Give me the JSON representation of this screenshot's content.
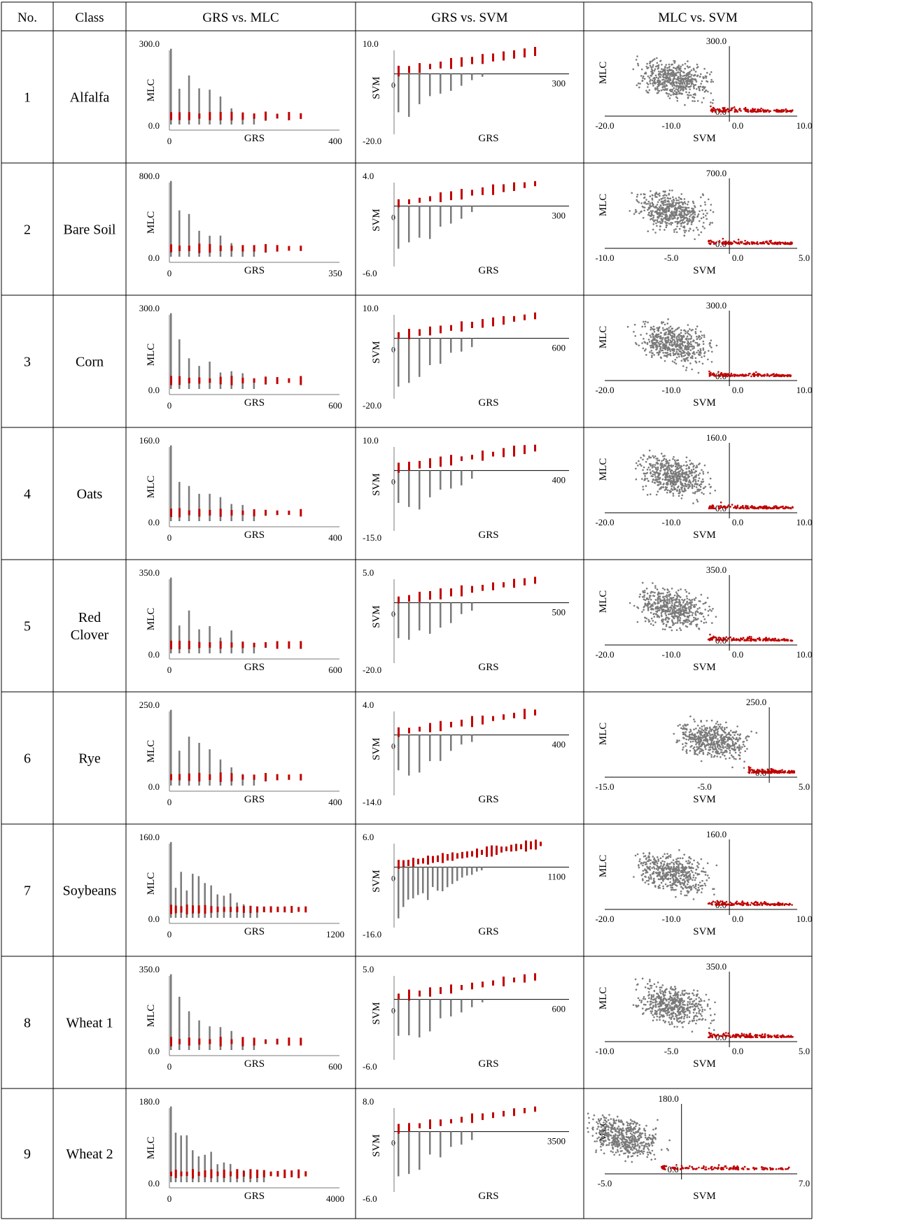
{
  "colors": {
    "gray_points": "#7a7a7a",
    "red_points": "#c00000",
    "grid": "#000000"
  },
  "header": {
    "no": "No.",
    "class": "Class",
    "col1": "GRS vs. MLC",
    "col2": "GRS vs. SVM",
    "col3": "MLC vs. SVM"
  },
  "rows": [
    {
      "no": "1",
      "cls": [
        "Alfalfa"
      ],
      "p1": {
        "x_name": "GRS",
        "y_name": "MLC",
        "y_top": "300.0",
        "y_bot": "0.0",
        "x_left": "0",
        "x_right": "400"
      },
      "p2": {
        "x_name": "GRS",
        "y_name": "SVM",
        "y_top": "10.0",
        "y_bot": "-20.0",
        "x_right": "300",
        "zero": "0"
      },
      "p3": {
        "x_name": "SVM",
        "y_name": "MLC",
        "y_top": "300.0",
        "y_zero": "0.0",
        "x_ticks": [
          "-20.0",
          "-10.0",
          "0.0",
          "10.0"
        ]
      }
    },
    {
      "no": "2",
      "cls": [
        "Bare Soil"
      ],
      "p1": {
        "x_name": "GRS",
        "y_name": "MLC",
        "y_top": "800.0",
        "y_bot": "0.0",
        "x_left": "0",
        "x_right": "350"
      },
      "p2": {
        "x_name": "GRS",
        "y_name": "SVM",
        "y_top": "4.0",
        "y_bot": "-6.0",
        "x_right": "300",
        "zero": "0"
      },
      "p3": {
        "x_name": "SVM",
        "y_name": "MLC",
        "y_top": "700.0",
        "y_zero": "0.0",
        "x_ticks": [
          "-10.0",
          "-5.0",
          "0.0",
          "5.0"
        ]
      }
    },
    {
      "no": "3",
      "cls": [
        "Corn"
      ],
      "p1": {
        "x_name": "GRS",
        "y_name": "MLC",
        "y_top": "300.0",
        "y_bot": "0.0",
        "x_left": "0",
        "x_right": "600"
      },
      "p2": {
        "x_name": "GRS",
        "y_name": "SVM",
        "y_top": "10.0",
        "y_bot": "-20.0",
        "x_right": "600",
        "zero": "0"
      },
      "p3": {
        "x_name": "SVM",
        "y_name": "MLC",
        "y_top": "300.0",
        "y_zero": "0.0",
        "x_ticks": [
          "-20.0",
          "-10.0",
          "0.0",
          "10.0"
        ]
      }
    },
    {
      "no": "4",
      "cls": [
        "Oats"
      ],
      "p1": {
        "x_name": "GRS",
        "y_name": "MLC",
        "y_top": "160.0",
        "y_bot": "0.0",
        "x_left": "0",
        "x_right": "400"
      },
      "p2": {
        "x_name": "GRS",
        "y_name": "SVM",
        "y_top": "10.0",
        "y_bot": "-15.0",
        "x_right": "400",
        "zero": "0"
      },
      "p3": {
        "x_name": "SVM",
        "y_name": "MLC",
        "y_top": "160.0",
        "y_zero": "0.0",
        "x_ticks": [
          "-20.0",
          "-10.0",
          "0.0",
          "10.0"
        ]
      }
    },
    {
      "no": "5",
      "cls": [
        "Red",
        "Clover"
      ],
      "p1": {
        "x_name": "GRS",
        "y_name": "MLC",
        "y_top": "350.0",
        "y_bot": "0.0",
        "x_left": "0",
        "x_right": "600"
      },
      "p2": {
        "x_name": "GRS",
        "y_name": "SVM",
        "y_top": "5.0",
        "y_bot": "-20.0",
        "x_right": "500",
        "zero": "0"
      },
      "p3": {
        "x_name": "SVM",
        "y_name": "MLC",
        "y_top": "350.0",
        "y_zero": "0.0",
        "x_ticks": [
          "-20.0",
          "-10.0",
          "0.0",
          "10.0"
        ]
      }
    },
    {
      "no": "6",
      "cls": [
        "Rye"
      ],
      "p1": {
        "x_name": "GRS",
        "y_name": "MLC",
        "y_top": "250.0",
        "y_bot": "0.0",
        "x_left": "0",
        "x_right": "400"
      },
      "p2": {
        "x_name": "GRS",
        "y_name": "SVM",
        "y_top": "4.0",
        "y_bot": "-14.0",
        "x_right": "400",
        "zero": "0"
      },
      "p3": {
        "x_name": "SVM",
        "y_name": "MLC",
        "y_top": "250.0",
        "y_zero": "0.0",
        "x_ticks": [
          "-15.0",
          "-5.0",
          "5.0"
        ]
      }
    },
    {
      "no": "7",
      "cls": [
        "Soybeans"
      ],
      "p1": {
        "x_name": "GRS",
        "y_name": "MLC",
        "y_top": "160.0",
        "y_bot": "0.0",
        "x_left": "0",
        "x_right": "1200"
      },
      "p2": {
        "x_name": "GRS",
        "y_name": "SVM",
        "y_top": "6.0",
        "y_bot": "-16.0",
        "x_right": "1100",
        "zero": "0"
      },
      "p3": {
        "x_name": "SVM",
        "y_name": "MLC",
        "y_top": "160.0",
        "y_zero": "0.0",
        "x_ticks": [
          "-20.0",
          "-10.0",
          "0.0",
          "10.0"
        ]
      }
    },
    {
      "no": "8",
      "cls": [
        "Wheat 1"
      ],
      "p1": {
        "x_name": "GRS",
        "y_name": "MLC",
        "y_top": "350.0",
        "y_bot": "0.0",
        "x_left": "0",
        "x_right": "600"
      },
      "p2": {
        "x_name": "GRS",
        "y_name": "SVM",
        "y_top": "5.0",
        "y_bot": "-6.0",
        "x_right": "600",
        "zero": "0"
      },
      "p3": {
        "x_name": "SVM",
        "y_name": "MLC",
        "y_top": "350.0",
        "y_zero": "0.0",
        "x_ticks": [
          "-10.0",
          "-5.0",
          "0.0",
          "5.0"
        ]
      }
    },
    {
      "no": "9",
      "cls": [
        "Wheat 2"
      ],
      "p1": {
        "x_name": "GRS",
        "y_name": "MLC",
        "y_top": "180.0",
        "y_bot": "0.0",
        "x_left": "0",
        "x_right": "4000"
      },
      "p2": {
        "x_name": "GRS",
        "y_name": "SVM",
        "y_top": "8.0",
        "y_bot": "-6.0",
        "x_right": "3500",
        "zero": "0"
      },
      "p3": {
        "x_name": "SVM",
        "y_name": "MLC",
        "y_top": "180.0",
        "y_zero": "0.0",
        "x_ticks": [
          "-5.0",
          "7.0"
        ]
      }
    }
  ]
}
